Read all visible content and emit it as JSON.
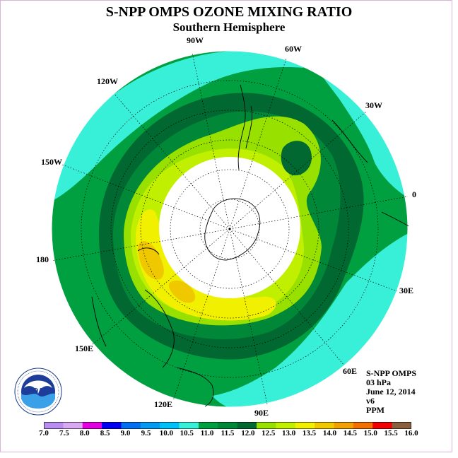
{
  "title": "S-NPP OMPS OZONE MIXING RATIO",
  "subtitle": "Southern Hemisphere",
  "map": {
    "projection": "polar stereographic",
    "hemisphere": "south",
    "longitude_labels": [
      "90W",
      "60W",
      "120W",
      "30W",
      "150W",
      "0",
      "180",
      "30E",
      "150E",
      "60E",
      "120E",
      "90E"
    ]
  },
  "info": {
    "instrument": "S-NPP OMPS",
    "level": "03 hPa",
    "date": "June 12, 2014",
    "version": "v6",
    "units": "PPM"
  },
  "colorbar": {
    "ticks": [
      "7.0",
      "7.5",
      "8.0",
      "8.5",
      "9.0",
      "9.5",
      "10.0",
      "10.5",
      "11.0",
      "11.5",
      "12.0",
      "12.5",
      "13.0",
      "13.5",
      "14.0",
      "14.5",
      "15.0",
      "15.5",
      "16.0"
    ],
    "colors": [
      "#b98cf0",
      "#d8a8f0",
      "#e000e0",
      "#0000f0",
      "#0070f0",
      "#0098f0",
      "#00c0f8",
      "#38f0d8",
      "#00a040",
      "#008838",
      "#006830",
      "#98e000",
      "#c0f000",
      "#f0f000",
      "#f0c800",
      "#f0a000",
      "#f07000",
      "#f00000",
      "#886040"
    ]
  },
  "logo": {
    "text": "NOAA"
  }
}
